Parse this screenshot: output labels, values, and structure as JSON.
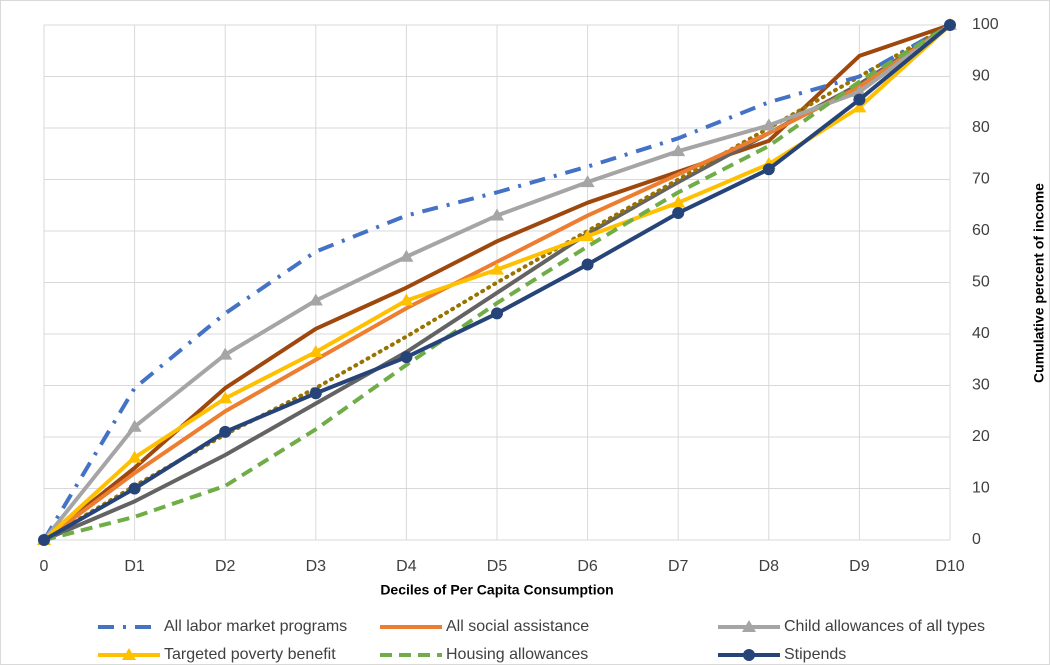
{
  "chart_data": {
    "type": "line",
    "x_label": "Deciles of Per Capita Consumption",
    "y_label": "Cumulative percent of income",
    "categories": [
      "0",
      "D1",
      "D2",
      "D3",
      "D4",
      "D5",
      "D6",
      "D7",
      "D8",
      "D9",
      "D10"
    ],
    "ylim": [
      0,
      100
    ],
    "yticks": [
      0,
      10,
      20,
      30,
      40,
      50,
      60,
      70,
      80,
      90,
      100
    ],
    "y_axis_side": "right",
    "grid": true,
    "legend": "bottom",
    "series": [
      {
        "name": "All labor market programs",
        "color": "#4472c4",
        "style": "dash-dot",
        "marker": "none",
        "values": [
          0,
          29.5,
          44,
          56,
          63,
          67.5,
          72.5,
          78,
          85,
          90,
          100
        ]
      },
      {
        "name": "All social assistance",
        "color": "#ed7d31",
        "style": "solid",
        "marker": "none",
        "values": [
          0,
          13,
          25,
          35,
          45,
          54,
          63,
          71,
          79,
          88,
          100
        ]
      },
      {
        "name": "Child allowances of all types",
        "color": "#a5a5a5",
        "style": "solid",
        "marker": "triangle",
        "values": [
          0,
          22,
          36,
          46.5,
          55,
          63,
          69.5,
          75.5,
          80.5,
          87,
          100
        ]
      },
      {
        "name": "Targeted poverty benefit",
        "color": "#ffc000",
        "style": "solid",
        "marker": "triangle",
        "values": [
          0,
          16,
          27.5,
          36.5,
          46.5,
          52.5,
          59,
          65.5,
          73,
          84,
          100
        ]
      },
      {
        "name": "Housing allowances",
        "color": "#70ad47",
        "style": "dashed",
        "marker": "none",
        "values": [
          0,
          4.5,
          10.5,
          21.5,
          34,
          46,
          57,
          67.5,
          76.5,
          89,
          100
        ]
      },
      {
        "name": "Stipends",
        "color": "#264478",
        "style": "solid",
        "marker": "circle",
        "values": [
          0,
          10,
          21,
          28.5,
          35.5,
          44,
          53.5,
          63.5,
          72,
          85.5,
          100
        ]
      },
      {
        "color": "#9e480e",
        "style": "solid",
        "marker": "none",
        "values": [
          0,
          14,
          29.5,
          41,
          49,
          58,
          65.5,
          71.5,
          77.5,
          94,
          100
        ]
      },
      {
        "color": "#636363",
        "style": "solid",
        "marker": "none",
        "values": [
          0,
          7.5,
          16.5,
          26.5,
          36.5,
          48,
          59.5,
          69.5,
          79,
          88.5,
          100
        ]
      },
      {
        "color": "#997300",
        "style": "dotted",
        "marker": "none",
        "values": [
          0,
          10.5,
          20.5,
          29.5,
          39.5,
          50,
          60,
          70,
          80,
          90,
          100
        ]
      }
    ]
  }
}
